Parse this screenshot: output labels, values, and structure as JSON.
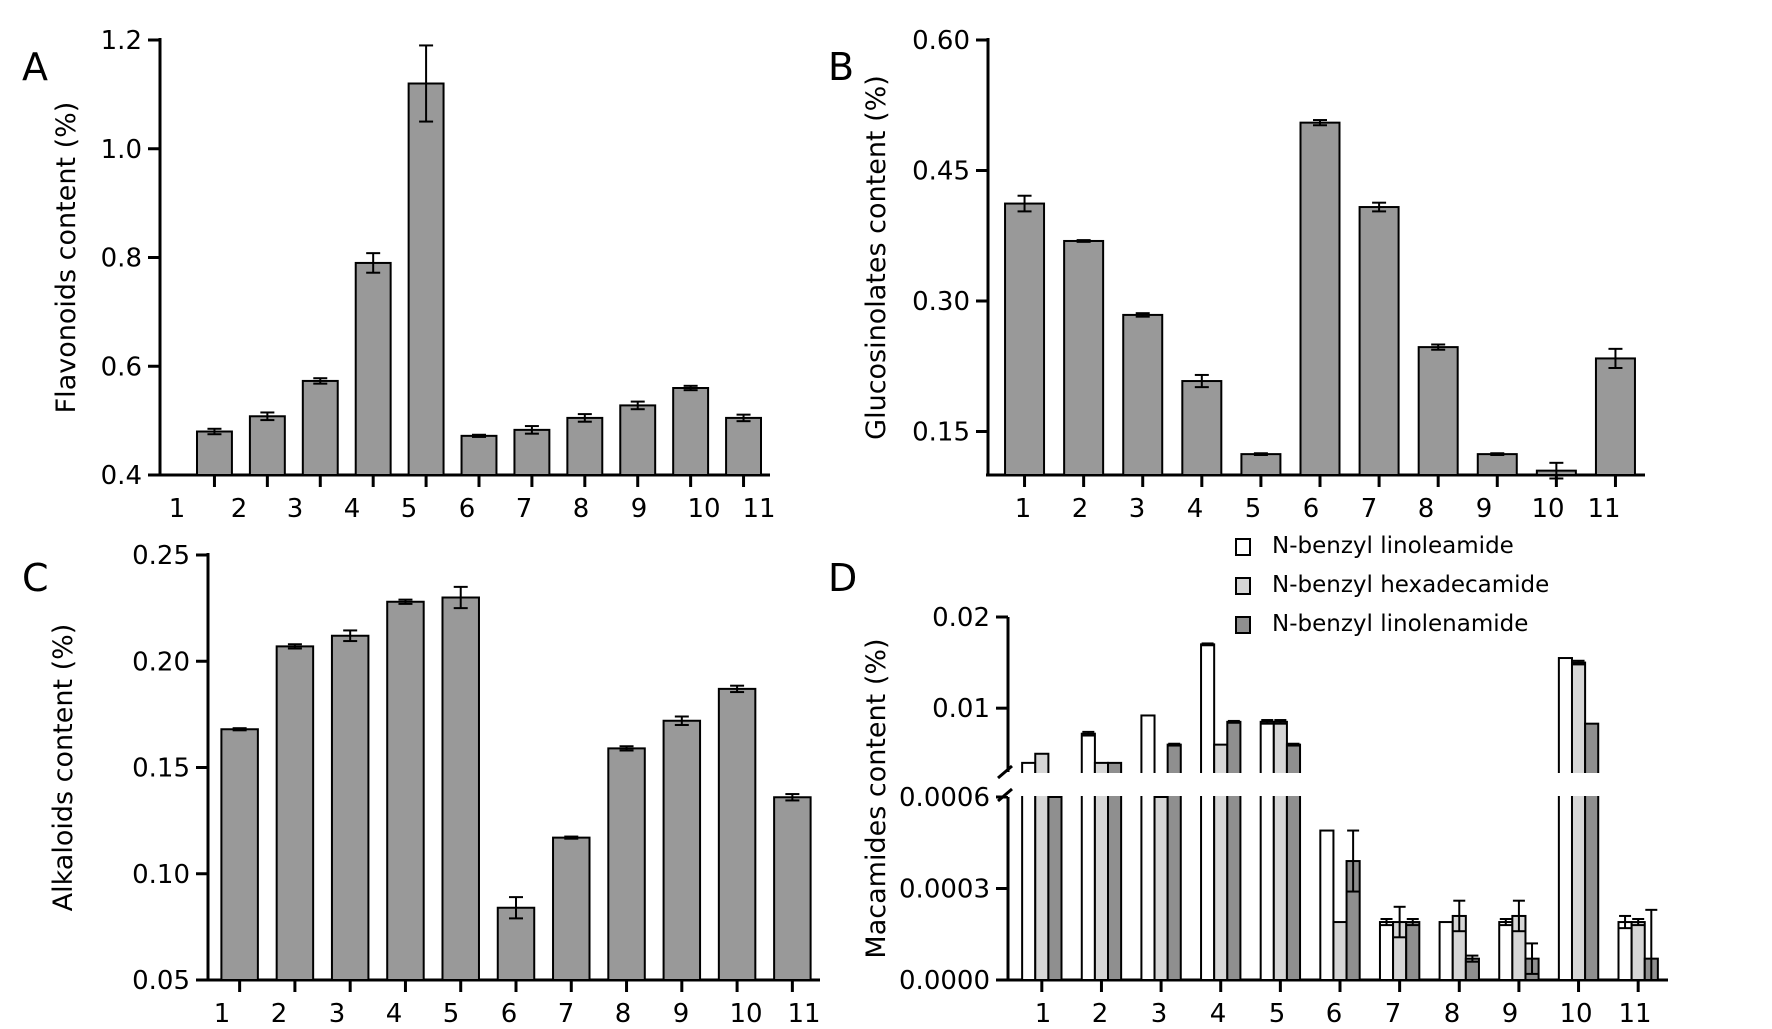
{
  "colors": {
    "bar": "#999999",
    "bar_series": [
      "#ffffff",
      "#d6d6d6",
      "#8f8f8f"
    ],
    "axis": "#000000"
  },
  "chart_data": [
    {
      "panel": "A",
      "type": "bar",
      "ylabel": "Flavonoids content (%)",
      "ylim": [
        0.4,
        1.2
      ],
      "yticks": [
        "0.4",
        "0.6",
        "0.8",
        "1.0",
        "1.2"
      ],
      "categories": [
        "1",
        "2",
        "3",
        "4",
        "5",
        "6",
        "7",
        "8",
        "9",
        "10",
        "11"
      ],
      "values": [
        0.48,
        0.508,
        0.573,
        0.79,
        1.12,
        0.472,
        0.483,
        0.505,
        0.528,
        0.56,
        0.505
      ],
      "errors": [
        0.005,
        0.007,
        0.005,
        0.018,
        0.07,
        0.002,
        0.007,
        0.007,
        0.007,
        0.004,
        0.006
      ]
    },
    {
      "panel": "B",
      "type": "bar",
      "ylabel": "Glucosinolates content (%)",
      "ylim": [
        0.1,
        0.6
      ],
      "yticks": [
        "0.15",
        "0.30",
        "0.45",
        "0.60"
      ],
      "categories": [
        "1",
        "2",
        "3",
        "4",
        "5",
        "6",
        "7",
        "8",
        "9",
        "10",
        "11"
      ],
      "values": [
        0.412,
        0.369,
        0.284,
        0.208,
        0.124,
        0.505,
        0.408,
        0.247,
        0.124,
        0.105,
        0.234
      ],
      "errors": [
        0.009,
        0.001,
        0.002,
        0.007,
        0.001,
        0.003,
        0.005,
        0.003,
        0.001,
        0.009,
        0.011
      ]
    },
    {
      "panel": "C",
      "type": "bar",
      "ylabel": "Alkaloids content (%)",
      "ylim": [
        0.05,
        0.25
      ],
      "yticks": [
        "0.05",
        "0.10",
        "0.15",
        "0.20",
        "0.25"
      ],
      "categories": [
        "1",
        "2",
        "3",
        "4",
        "5",
        "6",
        "7",
        "8",
        "9",
        "10",
        "11"
      ],
      "values": [
        0.168,
        0.207,
        0.212,
        0.228,
        0.23,
        0.084,
        0.117,
        0.159,
        0.172,
        0.187,
        0.136
      ],
      "errors": [
        0.0005,
        0.001,
        0.0025,
        0.001,
        0.005,
        0.005,
        0.0005,
        0.001,
        0.002,
        0.0015,
        0.0015
      ]
    },
    {
      "panel": "D",
      "type": "bar",
      "ylabel": "Macamides content (%)",
      "yticks_lower": [
        "0.0000",
        "0.0003",
        "0.0006"
      ],
      "yticks_upper": [
        "0.01",
        "0.02"
      ],
      "ylim_lower": [
        0,
        0.0006
      ],
      "ylim_upper": [
        0.003,
        0.02
      ],
      "axis_break": true,
      "categories": [
        "1",
        "2",
        "3",
        "4",
        "5",
        "6",
        "7",
        "8",
        "9",
        "10",
        "11"
      ],
      "legend": {
        "position": "top-right",
        "entries": [
          "N-benzyl linoleamide",
          "N-benzyl hexadecamide",
          "N-benzyl linolenamide"
        ]
      },
      "series": [
        {
          "name": "N-benzyl linoleamide",
          "values": [
            0.004,
            0.0072,
            0.0092,
            0.017,
            0.0085,
            0.00049,
            0.00019,
            0.00019,
            0.00019,
            0.0155,
            0.00019
          ],
          "errors": [
            0,
            0.0002,
            0,
            0.0001,
            0.0002,
            0,
            1e-05,
            0,
            1e-05,
            0,
            2e-05
          ]
        },
        {
          "name": "N-benzyl hexadecamide",
          "values": [
            0.005,
            0.004,
            0.0006,
            0.006,
            0.0085,
            0.00019,
            0.00019,
            0.00021,
            0.00021,
            0.015,
            0.00019
          ],
          "errors": [
            0,
            0,
            0,
            0,
            0.0002,
            0,
            5e-05,
            5e-05,
            5e-05,
            0.0002,
            1e-05
          ]
        },
        {
          "name": "N-benzyl linolenamide",
          "values": [
            0.0006,
            0.004,
            0.006,
            0.0085,
            0.006,
            0.00039,
            0.00019,
            7e-05,
            7e-05,
            0.0083,
            7e-05
          ],
          "errors": [
            0,
            0,
            0.0001,
            0.0001,
            0.0001,
            0.0001,
            1e-05,
            1e-05,
            5e-05,
            0,
            0.00016
          ]
        }
      ]
    }
  ]
}
